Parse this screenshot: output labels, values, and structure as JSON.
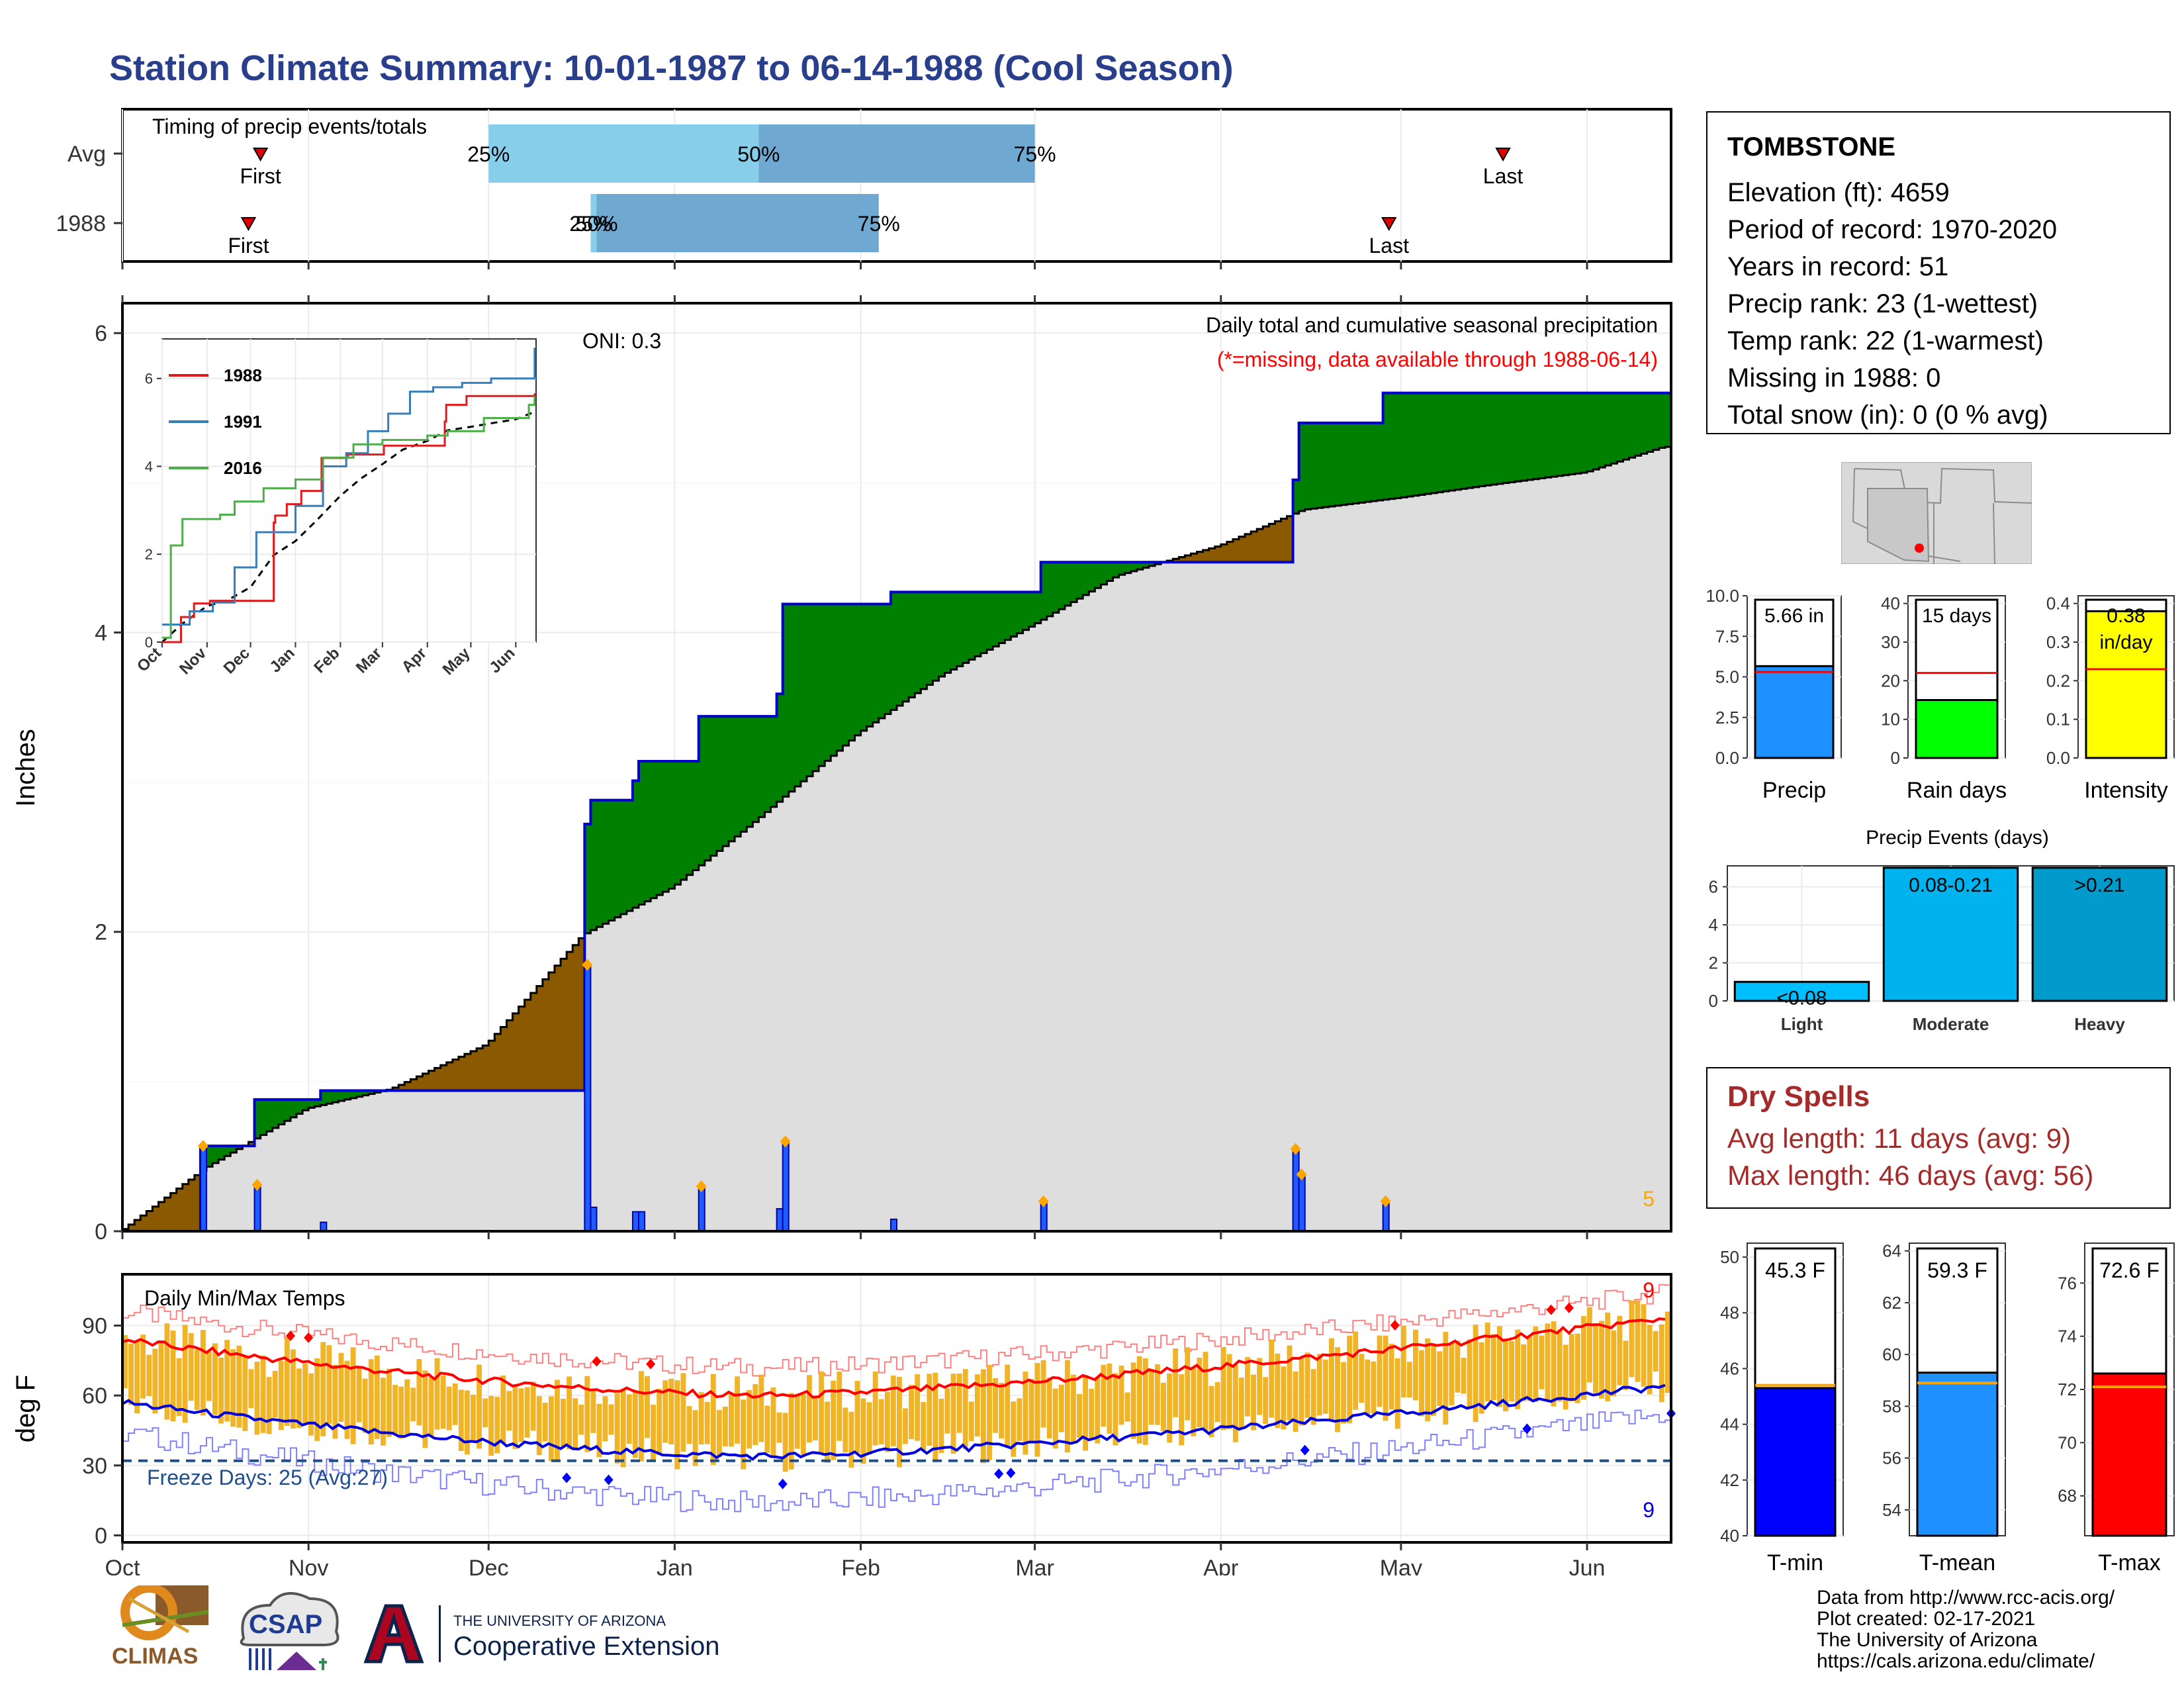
{
  "title": "Station Climate Summary: 10-01-1987 to 06-14-1988 (Cool Season)",
  "timing": {
    "label": "Timing of precip events/totals",
    "rows": [
      {
        "name": "Avg",
        "first_date": "1987-10-24",
        "q25_date": "1987-12-01",
        "q50_date": "1988-01-15",
        "q75_date": "1988-03-01",
        "last_date": "1988-05-18",
        "first_label": "First",
        "last_label": "Last",
        "q25_label": "25%",
        "q50_label": "50%",
        "q75_label": "75%"
      },
      {
        "name": "1988",
        "first_date": "1987-10-22",
        "q25_date": "1987-12-18",
        "q50_date": "1987-12-19",
        "q75_date": "1988-02-04",
        "last_date": "1988-04-29",
        "first_label": "First",
        "last_label": "Last",
        "q25_label": "25%",
        "q50_label": "50%",
        "q75_label": "75%"
      }
    ],
    "colors": {
      "q25_50": "#87ceeb",
      "q50_75": "#6fa8d0"
    }
  },
  "precip_panel": {
    "ylabel": "Inches",
    "oni": "ONI: 0.3",
    "heading": "Daily total and cumulative seasonal precipitation",
    "missing_note": "(*=missing, data available through 1988-06-14)",
    "count_label": "5",
    "ylim": [
      0,
      6.2
    ],
    "yticks": [
      0,
      2,
      4,
      6
    ]
  },
  "inset": {
    "legend": [
      "1988",
      "1991",
      "2016"
    ],
    "colors": {
      "1988": "#e31a1c",
      "1991": "#377eb8",
      "2016": "#4daf4a",
      "avg": "#000000"
    },
    "xticks": [
      "Oct",
      "Nov",
      "Dec",
      "Jan",
      "Feb",
      "Mar",
      "Apr",
      "May",
      "Jun"
    ],
    "yticks": [
      0,
      2,
      4,
      6
    ]
  },
  "temp_panel": {
    "ylabel": "deg F",
    "heading": "Daily Min/Max Temps",
    "freeze_text": "Freeze Days: 25 (Avg:27)",
    "hot_count": "9",
    "cold_count": "9",
    "yticks": [
      0,
      30,
      60,
      90
    ],
    "ylim": [
      -3,
      112
    ]
  },
  "months": [
    "Oct",
    "Nov",
    "Dec",
    "Jan",
    "Feb",
    "Mar",
    "Apr",
    "May",
    "Jun"
  ],
  "station": {
    "name": "TOMBSTONE",
    "lines": [
      "Elevation (ft): 4659",
      "Period of record: 1970-2020",
      "Years in record: 51",
      "Precip rank: 23 (1-wettest)",
      "Temp rank: 22 (1-warmest)",
      "Missing in 1988: 0",
      "Total snow (in): 0 (0 % avg)"
    ]
  },
  "summary_bars": [
    {
      "label": "Precip",
      "value": 5.66,
      "avg": 5.3,
      "text": "5.66 in",
      "color": "#1e90ff",
      "yticks": [
        "10.0",
        "7.5",
        "5.0",
        "2.5",
        "0.0"
      ],
      "ymax": 10
    },
    {
      "label": "Rain days",
      "value": 15,
      "avg": 22,
      "text": "15 days",
      "color": "#00ff00",
      "yticks": [
        "40",
        "30",
        "20",
        "10",
        "0"
      ],
      "ymax": 42
    },
    {
      "label": "Intensity",
      "value": 0.38,
      "avg": 0.23,
      "text": "0.38",
      "text2": "in/day",
      "color": "#ffff00",
      "yticks": [
        "0.4",
        "0.3",
        "0.2",
        "0.1",
        "0.0"
      ],
      "ymax": 0.42
    }
  ],
  "events": {
    "title": "Precip Events (days)",
    "categories": [
      "Light",
      "Moderate",
      "Heavy"
    ],
    "values": [
      1,
      7,
      7
    ],
    "labels": [
      "<0.08",
      "0.08-0.21",
      ">0.21"
    ],
    "colors": [
      "#00bfff",
      "#00b2ee",
      "#009acd"
    ],
    "yticks": [
      0,
      2,
      4,
      6
    ]
  },
  "dry_spells": {
    "title": "Dry Spells",
    "avg": "Avg length: 11 days (avg: 9)",
    "max": "Max length: 46 days (avg: 56)"
  },
  "temp_bars": [
    {
      "label": "T-min",
      "value": 45.3,
      "avg": 45.4,
      "text": "45.3 F",
      "color": "#0000ff",
      "ymin": 40,
      "ymax": 50.5,
      "yticks": [
        50,
        48,
        46,
        44,
        42,
        40
      ]
    },
    {
      "label": "T-mean",
      "value": 59.3,
      "avg": 58.9,
      "text": "59.3 F",
      "color": "#1e90ff",
      "ymin": 53,
      "ymax": 64.3,
      "yticks": [
        64,
        62,
        60,
        58,
        56,
        54
      ]
    },
    {
      "label": "T-max",
      "value": 72.6,
      "avg": 72.1,
      "text": "72.6 F",
      "color": "#ff0000",
      "ymin": 66.5,
      "ymax": 77.5,
      "yticks": [
        76,
        74,
        72,
        70,
        68
      ]
    }
  ],
  "credits": [
    "Data from http://www.rcc-acis.org/",
    "Plot created: 02-17-2021",
    "The University of Arizona",
    "https://cals.arizona.edu/climate/"
  ],
  "logos": {
    "climas": "CLIMAS",
    "csap": "CSAP",
    "ua_line1": "THE UNIVERSITY OF ARIZONA",
    "ua_line2": "Cooperative Extension"
  },
  "chart_data": {
    "type": "area",
    "season_start": "1987-10-01",
    "season_end": "1988-06-14",
    "daily_precip": [
      {
        "date": "1987-10-14",
        "value": 0.57
      },
      {
        "date": "1987-10-23",
        "value": 0.31
      },
      {
        "date": "1987-11-03",
        "value": 0.06
      },
      {
        "date": "1987-12-17",
        "value": 1.78
      },
      {
        "date": "1987-12-18",
        "value": 0.16
      },
      {
        "date": "1987-12-25",
        "value": 0.13
      },
      {
        "date": "1987-12-26",
        "value": 0.13
      },
      {
        "date": "1988-01-05",
        "value": 0.3
      },
      {
        "date": "1988-01-18",
        "value": 0.15
      },
      {
        "date": "1988-01-19",
        "value": 0.6
      },
      {
        "date": "1988-02-06",
        "value": 0.08
      },
      {
        "date": "1988-03-02",
        "value": 0.2
      },
      {
        "date": "1988-04-13",
        "value": 0.55
      },
      {
        "date": "1988-04-14",
        "value": 0.38
      },
      {
        "date": "1988-04-28",
        "value": 0.2
      }
    ],
    "cumulative_avg": [
      {
        "date": "1987-10-01",
        "value": 0.0
      },
      {
        "date": "1987-10-15",
        "value": 0.42
      },
      {
        "date": "1987-11-01",
        "value": 0.82
      },
      {
        "date": "1987-11-15",
        "value": 0.95
      },
      {
        "date": "1987-12-01",
        "value": 1.25
      },
      {
        "date": "1987-12-17",
        "value": 1.98
      },
      {
        "date": "1988-01-01",
        "value": 2.3
      },
      {
        "date": "1988-01-15",
        "value": 2.75
      },
      {
        "date": "1988-02-01",
        "value": 3.33
      },
      {
        "date": "1988-02-15",
        "value": 3.72
      },
      {
        "date": "1988-03-01",
        "value": 4.05
      },
      {
        "date": "1988-03-15",
        "value": 4.38
      },
      {
        "date": "1988-04-01",
        "value": 4.58
      },
      {
        "date": "1988-04-15",
        "value": 4.82
      },
      {
        "date": "1988-05-01",
        "value": 4.9
      },
      {
        "date": "1988-05-15",
        "value": 4.98
      },
      {
        "date": "1988-06-01",
        "value": 5.07
      },
      {
        "date": "1988-06-14",
        "value": 5.24
      }
    ],
    "inset_series": [
      {
        "name": "1988",
        "points": [
          [
            "1987-10-01",
            0
          ],
          [
            "1987-10-14",
            0.57
          ],
          [
            "1987-10-23",
            0.88
          ],
          [
            "1987-11-03",
            0.94
          ],
          [
            "1987-12-17",
            2.72
          ],
          [
            "1987-12-18",
            2.88
          ],
          [
            "1987-12-26",
            3.14
          ],
          [
            "1988-01-05",
            3.44
          ],
          [
            "1988-01-19",
            4.19
          ],
          [
            "1988-02-06",
            4.27
          ],
          [
            "1988-03-02",
            4.47
          ],
          [
            "1988-04-13",
            5.02
          ],
          [
            "1988-04-14",
            5.4
          ],
          [
            "1988-04-28",
            5.6
          ],
          [
            "1988-06-14",
            5.66
          ]
        ]
      },
      {
        "name": "1991",
        "points": [
          [
            "1987-10-01",
            0.4
          ],
          [
            "1987-10-20",
            0.7
          ],
          [
            "1987-11-05",
            0.9
          ],
          [
            "1987-11-20",
            1.7
          ],
          [
            "1987-12-05",
            2.5
          ],
          [
            "1988-01-01",
            3.1
          ],
          [
            "1988-01-20",
            4.0
          ],
          [
            "1988-02-05",
            4.3
          ],
          [
            "1988-02-20",
            4.8
          ],
          [
            "1988-03-05",
            5.2
          ],
          [
            "1988-03-20",
            5.7
          ],
          [
            "1988-04-05",
            5.8
          ],
          [
            "1988-04-25",
            5.9
          ],
          [
            "1988-05-15",
            6.0
          ],
          [
            "1988-06-14",
            6.7
          ]
        ]
      },
      {
        "name": "2016",
        "points": [
          [
            "1987-10-01",
            0.1
          ],
          [
            "1987-10-07",
            2.2
          ],
          [
            "1987-10-15",
            2.8
          ],
          [
            "1987-11-10",
            2.9
          ],
          [
            "1987-11-20",
            3.2
          ],
          [
            "1987-12-10",
            3.5
          ],
          [
            "1988-01-01",
            3.7
          ],
          [
            "1988-01-20",
            4.2
          ],
          [
            "1988-02-10",
            4.5
          ],
          [
            "1988-03-01",
            4.6
          ],
          [
            "1988-04-01",
            4.7
          ],
          [
            "1988-04-15",
            4.8
          ],
          [
            "1988-05-10",
            5.1
          ],
          [
            "1988-06-10",
            5.4
          ],
          [
            "1988-06-14",
            5.6
          ]
        ]
      }
    ],
    "temperature": {
      "freeze_line": 32,
      "avg_max_start": 84,
      "avg_max_mid": 60,
      "avg_max_end": 93,
      "avg_min_start": 57,
      "avg_min_mid": 34,
      "avg_min_end": 64
    }
  }
}
